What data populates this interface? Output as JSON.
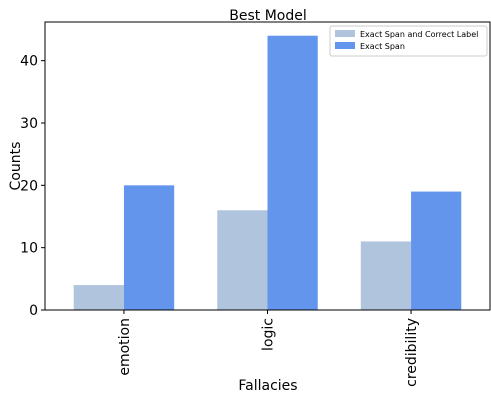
{
  "chart_data": {
    "type": "bar",
    "title": "Best Model",
    "xlabel": "Fallacies",
    "ylabel": "Counts",
    "categories": [
      "emotion",
      "logic",
      "credibility"
    ],
    "series": [
      {
        "name": "Exact Span and Correct Label",
        "values": [
          4,
          16,
          11
        ],
        "color": "#b0c4de"
      },
      {
        "name": "Exact Span",
        "values": [
          20,
          44,
          19
        ],
        "color": "#6495ed"
      }
    ],
    "ylim": [
      0,
      46.2
    ],
    "yticks": [
      "0",
      "10",
      "20",
      "30",
      "40"
    ],
    "legend_position": "top-right",
    "grid": false
  }
}
